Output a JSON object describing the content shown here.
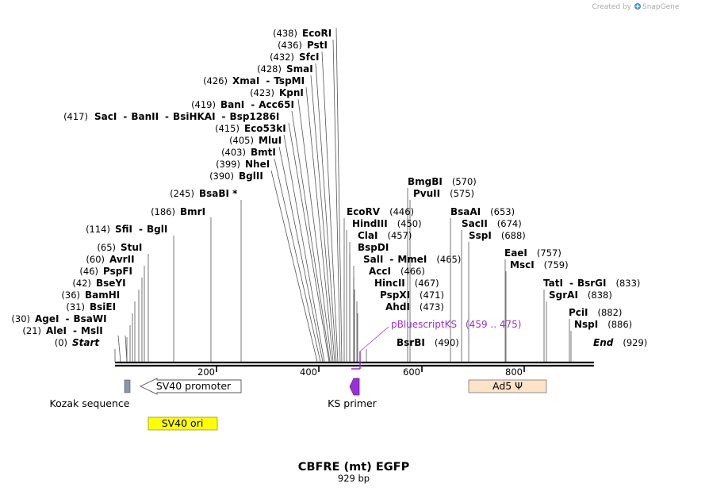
{
  "title": "CBFRE (mt) EGFP",
  "length_label": "929 bp",
  "credit": {
    "prefix": "Created by",
    "brand": "SnapGene",
    "logo_icon": "snapgene-logo-icon"
  },
  "colors": {
    "backbone": "#000000",
    "kozak": "#8c97a6",
    "sv40_promoter": "#ffffff",
    "sv40_ori": "#ffff00",
    "ks_primer": "#9b30d9",
    "ad5": "#fde3c8",
    "primer_text": "#9b30d9"
  },
  "axis_ticks": [
    "200",
    "400",
    "600",
    "800"
  ],
  "enzyme_rows": [
    {
      "names": [
        "EcoRI"
      ],
      "pos": "(438)"
    },
    {
      "names": [
        "PstI"
      ],
      "pos": "(436)"
    },
    {
      "names": [
        "SfcI"
      ],
      "pos": "(432)"
    },
    {
      "names": [
        "SmaI"
      ],
      "pos": "(428)"
    },
    {
      "names": [
        "XmaI",
        "TspMI"
      ],
      "pos": "(426)"
    },
    {
      "names": [
        "KpnI"
      ],
      "pos": "(423)"
    },
    {
      "names": [
        "BanI",
        "Acc65I"
      ],
      "pos": "(419)"
    },
    {
      "names": [
        "SacI",
        "BanII",
        "BsiHKAI",
        "Bsp1286I"
      ],
      "pos": "(417)"
    },
    {
      "names": [
        "Eco53kI"
      ],
      "pos": "(415)"
    },
    {
      "names": [
        "MluI"
      ],
      "pos": "(405)"
    },
    {
      "names": [
        "BmtI"
      ],
      "pos": "(403)"
    },
    {
      "names": [
        "NheI"
      ],
      "pos": "(399)"
    },
    {
      "names": [
        "BglII"
      ],
      "pos": "(390)"
    },
    {
      "names": [
        "BsaBI *"
      ],
      "pos": "(245)"
    },
    {
      "names": [
        "BmrI"
      ],
      "pos": "(186)"
    },
    {
      "names": [
        "SfiI",
        "BglI"
      ],
      "pos": "(114)"
    },
    {
      "names": [
        "StuI"
      ],
      "pos": "(65)"
    },
    {
      "names": [
        "AvrII"
      ],
      "pos": "(60)"
    },
    {
      "names": [
        "PspFI"
      ],
      "pos": "(46)"
    },
    {
      "names": [
        "BseYI"
      ],
      "pos": "(42)"
    },
    {
      "names": [
        "BamHI"
      ],
      "pos": "(36)"
    },
    {
      "names": [
        "BsiEI"
      ],
      "pos": "(31)"
    },
    {
      "names": [
        "AgeI",
        "BsaWI"
      ],
      "pos": "(30)"
    },
    {
      "names": [
        "AleI",
        "MslI"
      ],
      "pos": "(21)"
    },
    {
      "names": [
        "Start"
      ],
      "pos": "(0)"
    },
    {
      "names": [
        "BmgBI"
      ],
      "pos": "(570)"
    },
    {
      "names": [
        "PvuII"
      ],
      "pos": "(575)"
    },
    {
      "names": [
        "EcoRV"
      ],
      "pos": "(446)"
    },
    {
      "names": [
        "HindIII"
      ],
      "pos": "(450)"
    },
    {
      "names": [
        "ClaI"
      ],
      "pos": "(457)"
    },
    {
      "names": [
        "BspDI"
      ],
      "pos": ""
    },
    {
      "names": [
        "SalI",
        "MmeI"
      ],
      "pos": "(465)"
    },
    {
      "names": [
        "AccI"
      ],
      "pos": "(466)"
    },
    {
      "names": [
        "HincII"
      ],
      "pos": "(467)"
    },
    {
      "names": [
        "PspXI"
      ],
      "pos": "(471)"
    },
    {
      "names": [
        "AhdI"
      ],
      "pos": "(473)"
    },
    {
      "names": [
        "BsrBI"
      ],
      "pos": "(490)"
    },
    {
      "names": [
        "BsaAI"
      ],
      "pos": "(653)"
    },
    {
      "names": [
        "SacII"
      ],
      "pos": "(674)"
    },
    {
      "names": [
        "SspI"
      ],
      "pos": "(688)"
    },
    {
      "names": [
        "EaeI"
      ],
      "pos": "(757)"
    },
    {
      "names": [
        "MscI"
      ],
      "pos": "(759)"
    },
    {
      "names": [
        "TatI",
        "BsrGI"
      ],
      "pos": "(833)"
    },
    {
      "names": [
        "SgrAI"
      ],
      "pos": "(838)"
    },
    {
      "names": [
        "PciI"
      ],
      "pos": "(882)"
    },
    {
      "names": [
        "NspI"
      ],
      "pos": "(886)"
    },
    {
      "names": [
        "End"
      ],
      "pos": "(929)"
    }
  ],
  "primer": {
    "name": "pBluescriptKS",
    "range": "(459 .. 475)"
  },
  "features": {
    "kozak": "Kozak sequence",
    "sv40_promoter": "SV40 promoter",
    "sv40_ori": "SV40 ori",
    "ks_primer": "KS primer",
    "ad5": "Ad5 Ψ"
  }
}
